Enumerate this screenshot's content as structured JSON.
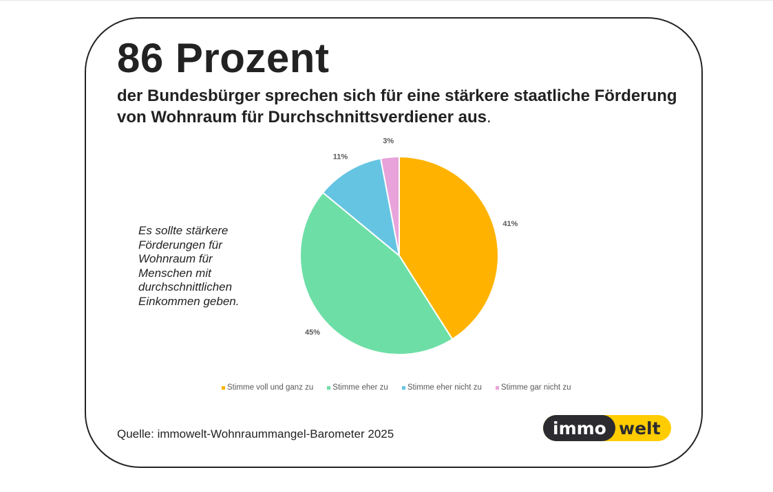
{
  "header": {
    "title": "86 Prozent",
    "subtitle": "der Bundesbürger sprechen sich für eine stärkere staatliche Förderung von Wohnraum für Durchschnittsverdiener aus",
    "subtitle_end": "."
  },
  "statement": "Es sollte stärkere Förderungen für Wohnraum für Menschen mit durchschnittlichen Einkommen geben.",
  "source": "Quelle: immowelt-Wohnraummangel-Barometer 2025",
  "logo": {
    "part1": "immo",
    "part2": "welt",
    "dark": "#2b2b30",
    "yellow": "#ffcc00"
  },
  "chart_data": {
    "type": "pie",
    "start": "top, clockwise",
    "categories": [
      "Stimme voll und ganz zu",
      "Stimme eher zu",
      "Stimme eher nicht zu",
      "Stimme gar nicht zu"
    ],
    "values": [
      41,
      45,
      11,
      3
    ],
    "labels": [
      "41%",
      "45%",
      "11%",
      "3%"
    ],
    "colors": [
      "#ffb300",
      "#6ddfa6",
      "#66c4e3",
      "#e8a3da"
    ],
    "legend_position": "bottom"
  }
}
